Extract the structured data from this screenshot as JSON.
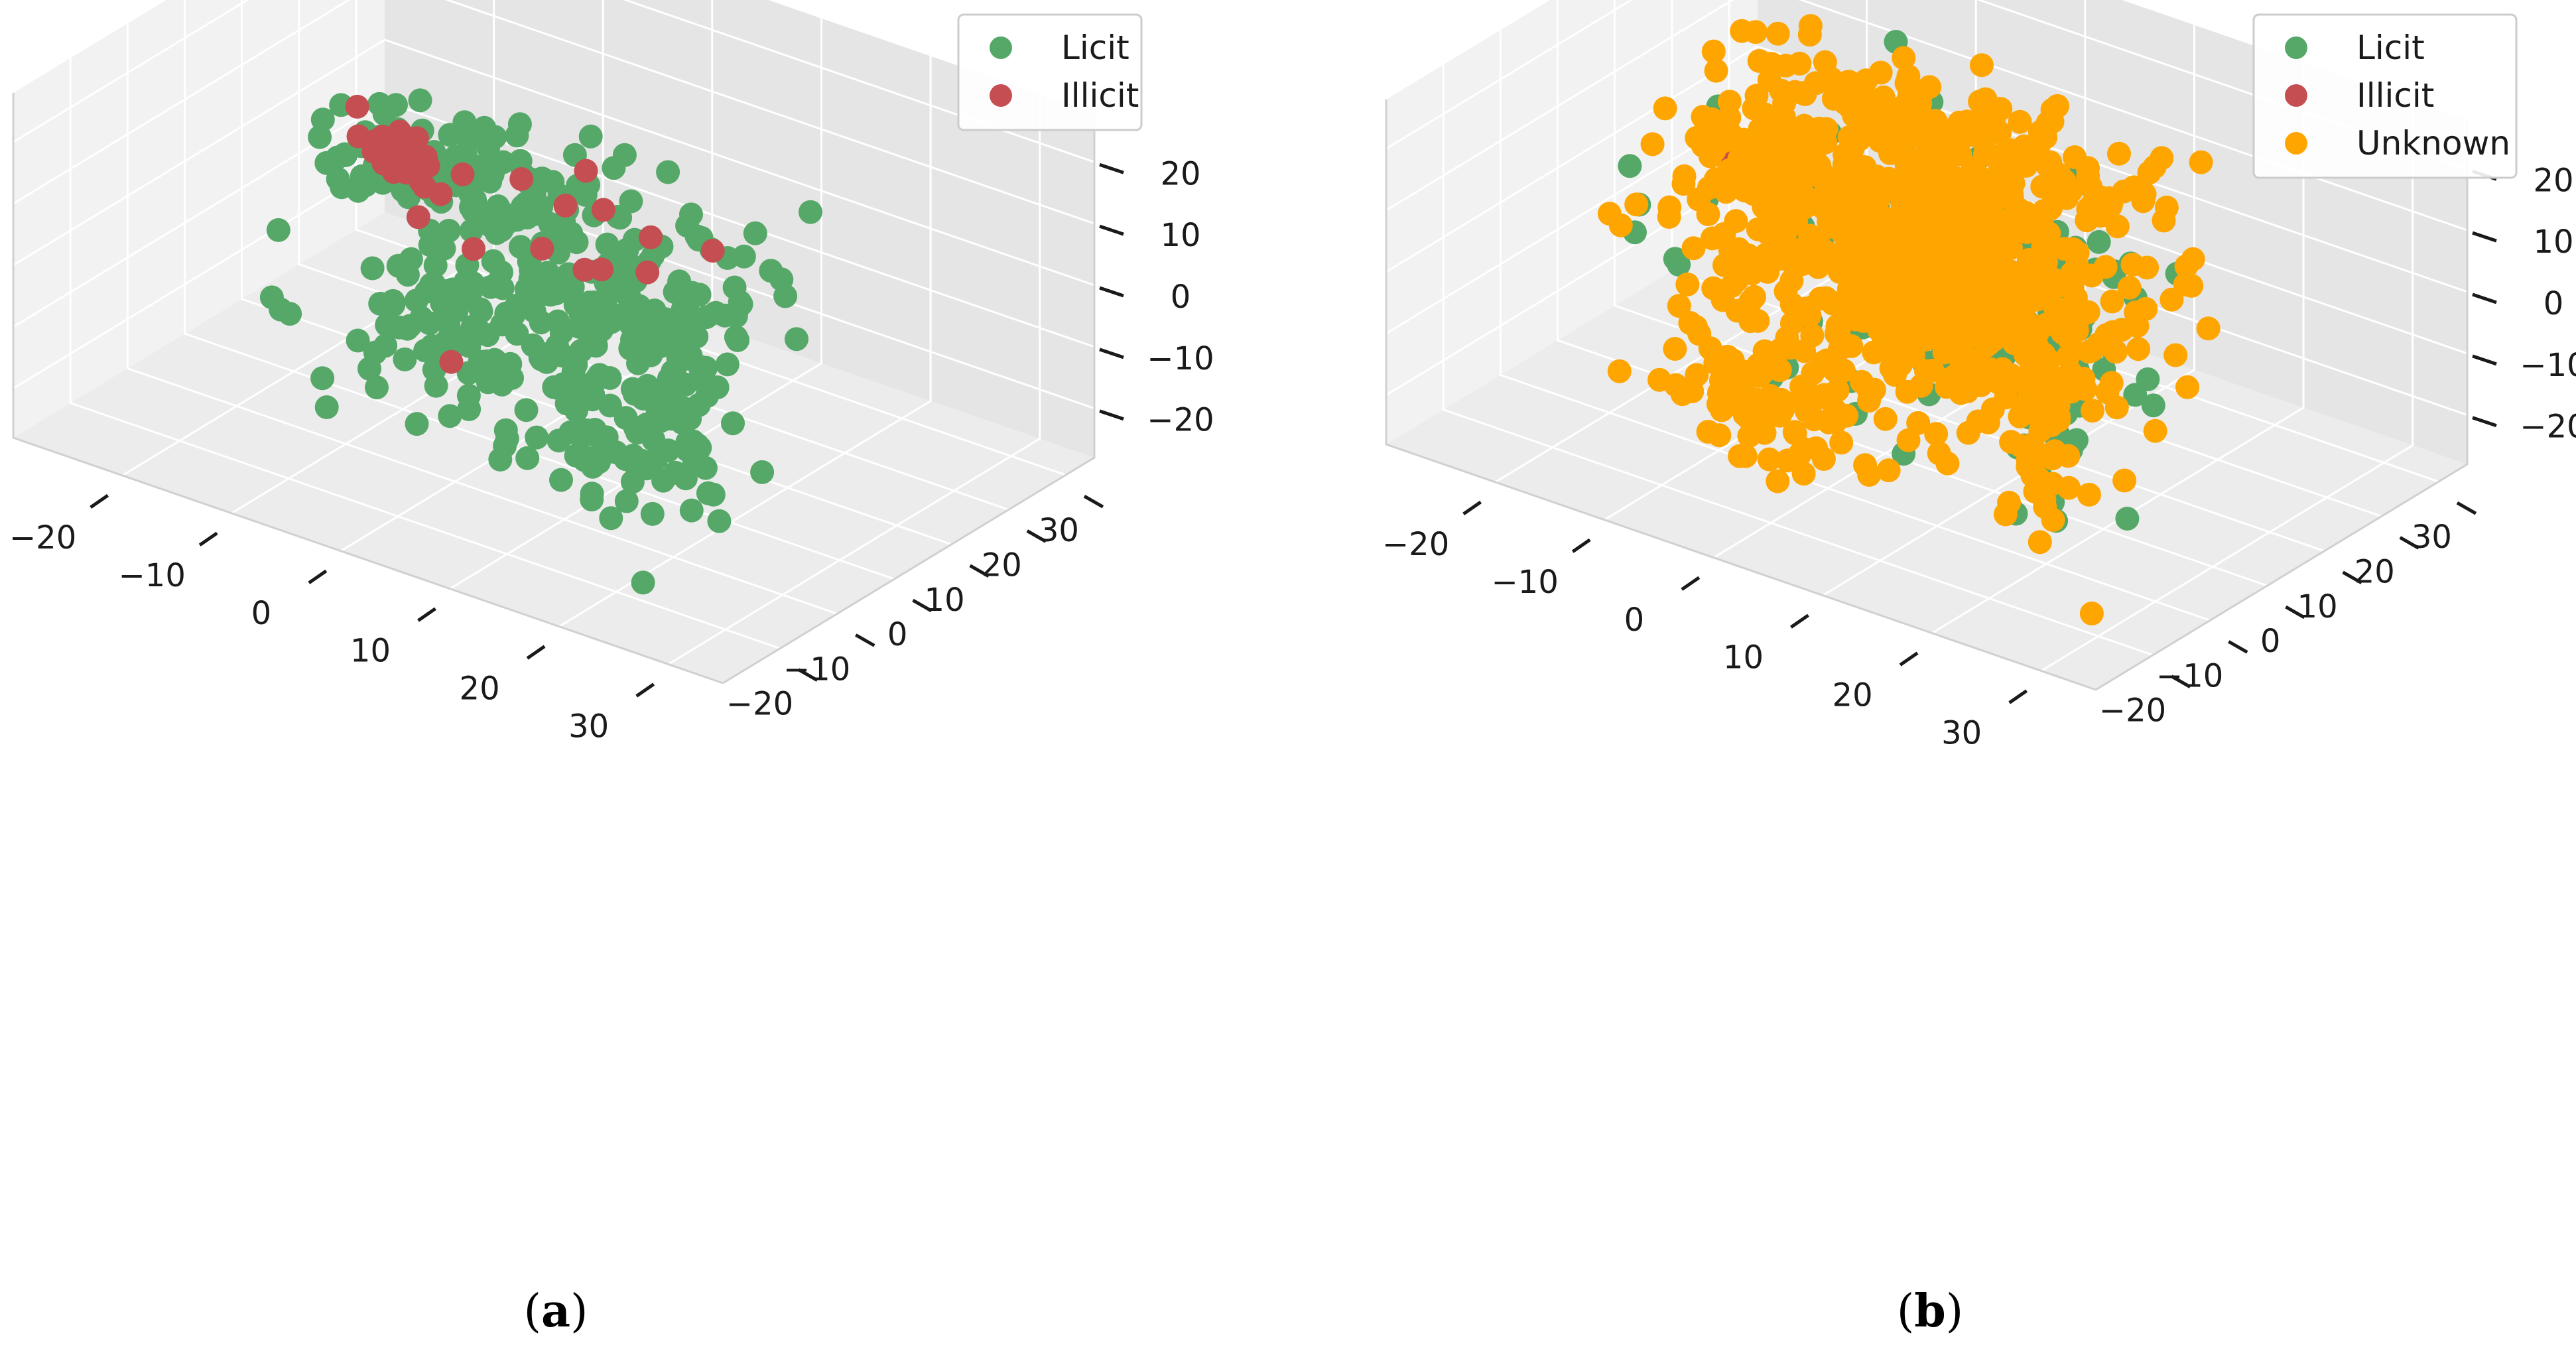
{
  "chart_data": [
    {
      "type": "scatter3d",
      "caption": "a",
      "x_ticks": [
        "−20",
        "−10",
        "0",
        "10",
        "20",
        "30"
      ],
      "y_ticks": [
        "−20",
        "−10",
        "0",
        "10",
        "20",
        "30"
      ],
      "z_ticks": [
        "−20",
        "−10",
        "0",
        "10",
        "20"
      ],
      "xlim": [
        -30,
        35
      ],
      "ylim": [
        -30,
        35
      ],
      "zlim": [
        -28,
        28
      ],
      "grid": true,
      "legend_position": "top-right",
      "series": [
        {
          "name": "Licit",
          "color": "#55a868",
          "clusters": [
            {
              "x": -8,
              "y": 8,
              "z": 6,
              "sx": 6,
              "sy": 6,
              "sz": 4,
              "n": 90
            },
            {
              "x": 8,
              "y": 2,
              "z": 2,
              "sx": 8,
              "sy": 6,
              "sz": 6,
              "n": 150
            },
            {
              "x": -2,
              "y": -6,
              "z": -8,
              "sx": 7,
              "sy": 5,
              "sz": 4,
              "n": 90
            },
            {
              "x": 14,
              "y": -10,
              "z": -14,
              "sx": 4,
              "sy": 3,
              "sz": 3,
              "n": 50
            },
            {
              "x": 24,
              "y": -18,
              "z": 5,
              "sx": 2,
              "sy": 2,
              "sz": 8,
              "n": 50
            },
            {
              "x": -22,
              "y": 18,
              "z": -4,
              "sx": 2,
              "sy": 2,
              "sz": 2,
              "n": 20
            }
          ]
        },
        {
          "name": "Illicit",
          "color": "#c44e52",
          "clusters": [
            {
              "x": -20,
              "y": 18,
              "z": -3,
              "sx": 2,
              "sy": 2,
              "sz": 2,
              "n": 35
            },
            {
              "x": 4,
              "y": 4,
              "z": 4,
              "sx": 10,
              "sy": 8,
              "sz": 6,
              "n": 14
            }
          ]
        }
      ]
    },
    {
      "type": "scatter3d",
      "caption": "b",
      "x_ticks": [
        "−20",
        "−10",
        "0",
        "10",
        "20",
        "30"
      ],
      "y_ticks": [
        "−20",
        "−10",
        "0",
        "10",
        "20",
        "30"
      ],
      "z_ticks": [
        "−20",
        "−10",
        "0",
        "10",
        "20"
      ],
      "xlim": [
        -30,
        35
      ],
      "ylim": [
        -30,
        35
      ],
      "zlim": [
        -28,
        28
      ],
      "grid": true,
      "legend_position": "top-right",
      "series": [
        {
          "name": "Licit",
          "color": "#55a868",
          "clusters": [
            {
              "x": 5,
              "y": 2,
              "z": 2,
              "sx": 10,
              "sy": 8,
              "sz": 8,
              "n": 160
            },
            {
              "x": 24,
              "y": -18,
              "z": 5,
              "sx": 2,
              "sy": 2,
              "sz": 8,
              "n": 30
            }
          ]
        },
        {
          "name": "Illicit",
          "color": "#c44e52",
          "clusters": [
            {
              "x": -20,
              "y": 18,
              "z": -3,
              "sx": 2,
              "sy": 2,
              "sz": 2,
              "n": 10
            }
          ]
        },
        {
          "name": "Unknown",
          "color": "#ffa500",
          "clusters": [
            {
              "x": 2,
              "y": 4,
              "z": 3,
              "sx": 9,
              "sy": 8,
              "sz": 9,
              "n": 700
            },
            {
              "x": -20,
              "y": 18,
              "z": -3,
              "sx": 3,
              "sy": 3,
              "sz": 3,
              "n": 90
            },
            {
              "x": 24,
              "y": -18,
              "z": 3,
              "sx": 2,
              "sy": 2,
              "sz": 9,
              "n": 70
            },
            {
              "x": 0,
              "y": 10,
              "z": 18,
              "sx": 10,
              "sy": 4,
              "sz": 3,
              "n": 120
            },
            {
              "x": -4,
              "y": -10,
              "z": -18,
              "sx": 6,
              "sy": 4,
              "sz": 3,
              "n": 80
            }
          ]
        }
      ]
    }
  ]
}
